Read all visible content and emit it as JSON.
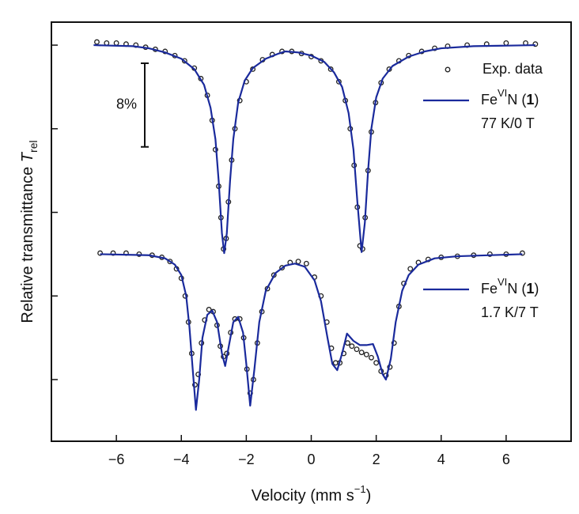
{
  "chart_data": {
    "type": "line",
    "x_label": {
      "text": "Velocity (mm s",
      "superscript": "−1",
      "close": ")"
    },
    "y_label": {
      "text": "Relative transmittance ",
      "symbol": "T",
      "subscript": "rel"
    },
    "xlim": [
      -8,
      8
    ],
    "ylim": [
      -37.9,
      2.2
    ],
    "xticks": [
      {
        "value": -6,
        "label": "−6"
      },
      {
        "value": -4,
        "label": "−4"
      },
      {
        "value": -2,
        "label": "−2"
      },
      0,
      2,
      4,
      6
    ],
    "yticks": [
      0,
      -8,
      -16,
      -24,
      -32
    ],
    "scale_bar": {
      "value": 8,
      "label": "8%"
    },
    "series": [
      {
        "name": "Exp. data",
        "style": "markers",
        "color": "#222222",
        "x": [
          -6.6,
          -6.3,
          -6.0,
          -5.7,
          -5.4,
          -5.1,
          -4.8,
          -4.5,
          -4.2,
          -3.9,
          -3.6,
          -3.4,
          -3.2,
          -3.05,
          -2.95,
          -2.85,
          -2.78,
          -2.7,
          -2.62,
          -2.55,
          -2.45,
          -2.35,
          -2.2,
          -2.0,
          -1.8,
          -1.5,
          -1.2,
          -0.9,
          -0.6,
          -0.3,
          0,
          0.3,
          0.6,
          0.85,
          1.05,
          1.2,
          1.32,
          1.42,
          1.5,
          1.58,
          1.66,
          1.75,
          1.85,
          1.98,
          2.15,
          2.4,
          2.7,
          3.0,
          3.4,
          3.8,
          4.2,
          4.8,
          5.4,
          6.0,
          6.6,
          6.9
        ],
        "values": [
          0.3,
          0.2,
          0.2,
          0.1,
          0.0,
          -0.2,
          -0.4,
          -0.6,
          -1.0,
          -1.5,
          -2.2,
          -3.2,
          -4.8,
          -7.2,
          -10,
          -13.5,
          -16.5,
          -19.5,
          -18.5,
          -15,
          -11,
          -8,
          -5.3,
          -3.5,
          -2.3,
          -1.4,
          -0.9,
          -0.6,
          -0.6,
          -0.8,
          -1.1,
          -1.5,
          -2.3,
          -3.5,
          -5.3,
          -8,
          -11.5,
          -15.5,
          -19.2,
          -19.5,
          -16.5,
          -12,
          -8.3,
          -5.5,
          -3.6,
          -2.3,
          -1.5,
          -1.0,
          -0.6,
          -0.3,
          -0.1,
          0.0,
          0.1,
          0.2,
          0.2,
          0.1
        ]
      },
      {
        "name": {
          "element": "Fe",
          "superscript": "VI",
          "ligand": "N (",
          "bold": "1",
          "close": ")",
          "condition": "77 K/0 T"
        },
        "style": "line",
        "color": "#1a2a9c",
        "x": [
          -6.7,
          -5.5,
          -5,
          -4.5,
          -4,
          -3.6,
          -3.3,
          -3.1,
          -2.95,
          -2.85,
          -2.75,
          -2.68,
          -2.6,
          -2.5,
          -2.4,
          -2.25,
          -2.05,
          -1.8,
          -1.4,
          -1,
          -0.8,
          -0.4,
          0,
          0.4,
          0.7,
          0.95,
          1.15,
          1.3,
          1.42,
          1.55,
          1.65,
          1.75,
          1.85,
          2.0,
          2.2,
          2.5,
          3,
          3.5,
          4,
          5,
          6.9
        ],
        "values": [
          0,
          -0.1,
          -0.3,
          -0.7,
          -1.3,
          -2.3,
          -3.8,
          -6,
          -9,
          -13,
          -18,
          -19.9,
          -18,
          -13,
          -9,
          -5.5,
          -3.4,
          -2.2,
          -1.3,
          -0.8,
          -0.6,
          -0.7,
          -1.0,
          -1.6,
          -2.6,
          -4,
          -6.5,
          -10,
          -15,
          -19.8,
          -17,
          -12,
          -8,
          -5,
          -3.2,
          -2,
          -1.1,
          -0.6,
          -0.3,
          -0.1,
          0
        ]
      },
      {
        "style": "markers",
        "color": "#222222",
        "x": [
          -6.5,
          -6.1,
          -5.7,
          -5.3,
          -4.9,
          -4.6,
          -4.35,
          -4.15,
          -4.0,
          -3.88,
          -3.78,
          -3.68,
          -3.58,
          -3.48,
          -3.38,
          -3.28,
          -3.15,
          -3.02,
          -2.9,
          -2.8,
          -2.7,
          -2.6,
          -2.48,
          -2.35,
          -2.2,
          -2.08,
          -1.98,
          -1.88,
          -1.78,
          -1.66,
          -1.52,
          -1.35,
          -1.15,
          -0.9,
          -0.65,
          -0.4,
          -0.15,
          0.1,
          0.3,
          0.48,
          0.62,
          0.75,
          0.88,
          1.0,
          1.12,
          1.25,
          1.4,
          1.55,
          1.7,
          1.85,
          2.0,
          2.15,
          2.3,
          2.42,
          2.55,
          2.7,
          2.85,
          3.05,
          3.3,
          3.6,
          4.0,
          4.5,
          5.0,
          5.5,
          6.0,
          6.5
        ],
        "values": [
          -19.9,
          -19.9,
          -19.9,
          -20.0,
          -20.1,
          -20.3,
          -20.7,
          -21.4,
          -22.3,
          -24,
          -26.5,
          -29.5,
          -32.5,
          -31.5,
          -28.5,
          -26.3,
          -25.3,
          -25.5,
          -26.8,
          -28.8,
          -29.8,
          -29.5,
          -27.5,
          -26.2,
          -26.2,
          -28,
          -31,
          -33.3,
          -32,
          -28.5,
          -25.5,
          -23.3,
          -22,
          -21.3,
          -20.8,
          -20.7,
          -20.9,
          -22.2,
          -24,
          -26.5,
          -29,
          -30.4,
          -30.4,
          -29.5,
          -28.5,
          -28.8,
          -29.1,
          -29.4,
          -29.6,
          -29.9,
          -30.4,
          -31.2,
          -31.6,
          -30.8,
          -28.5,
          -25,
          -22.8,
          -21.4,
          -20.8,
          -20.5,
          -20.3,
          -20.2,
          -20.1,
          -20.0,
          -20.0,
          -19.9
        ]
      },
      {
        "name": {
          "element": "Fe",
          "superscript": "VI",
          "ligand": "N (",
          "bold": "1",
          "close": ")",
          "condition": "1.7 K/7 T"
        },
        "style": "line",
        "color": "#1a2a9c",
        "x": [
          -6.5,
          -5,
          -4.5,
          -4.2,
          -4.0,
          -3.85,
          -3.75,
          -3.65,
          -3.55,
          -3.45,
          -3.35,
          -3.2,
          -3.05,
          -2.9,
          -2.75,
          -2.65,
          -2.55,
          -2.4,
          -2.25,
          -2.1,
          -2.0,
          -1.88,
          -1.75,
          -1.6,
          -1.4,
          -1.1,
          -0.8,
          -0.5,
          -0.2,
          0.1,
          0.3,
          0.5,
          0.65,
          0.8,
          0.95,
          1.1,
          1.3,
          1.5,
          1.7,
          1.9,
          2.05,
          2.2,
          2.3,
          2.45,
          2.6,
          2.8,
          3.0,
          3.3,
          3.8,
          4.5,
          6.5
        ],
        "values": [
          -20,
          -20.1,
          -20.4,
          -21,
          -22,
          -24,
          -27,
          -31,
          -34.9,
          -32,
          -28,
          -25.8,
          -25.4,
          -26.5,
          -29.5,
          -30.7,
          -29,
          -26.5,
          -26,
          -27.5,
          -30.5,
          -34.5,
          -31,
          -26.5,
          -23.5,
          -21.8,
          -21.1,
          -20.9,
          -21.2,
          -22.5,
          -24.5,
          -28,
          -30.5,
          -31.1,
          -29.5,
          -27.6,
          -28.3,
          -28.7,
          -28.7,
          -28.6,
          -29.8,
          -31.5,
          -32,
          -30,
          -26.5,
          -23.5,
          -22,
          -21,
          -20.4,
          -20.2,
          -20
        ]
      }
    ]
  }
}
